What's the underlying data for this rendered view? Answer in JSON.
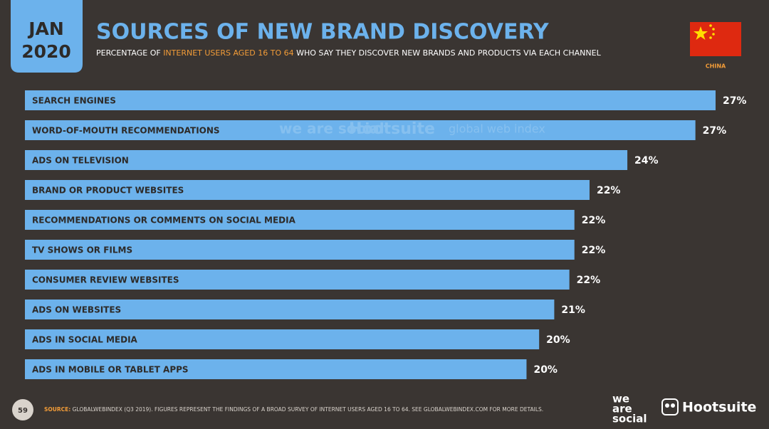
{
  "chart_data": {
    "type": "hbar",
    "badge": {
      "month": "JAN",
      "year": "2020"
    },
    "title": "SOURCES OF NEW BRAND DISCOVERY",
    "subtitle_parts": [
      "PERCENTAGE OF ",
      "INTERNET USERS AGED 16 TO 64",
      " WHO SAY THEY DISCOVER NEW BRANDS AND PRODUCTS VIA EACH CHANNEL"
    ],
    "country": "CHINA",
    "categories": [
      "SEARCH ENGINES",
      "WORD-OF-MOUTH RECOMMENDATIONS",
      "ADS ON TELEVISION",
      "BRAND OR PRODUCT WEBSITES",
      "RECOMMENDATIONS OR COMMENTS ON SOCIAL MEDIA",
      "TV SHOWS OR FILMS",
      "CONSUMER REVIEW WEBSITES",
      "ADS ON WEBSITES",
      "ADS IN SOCIAL MEDIA",
      "ADS IN MOBILE OR TABLET APPS"
    ],
    "values": [
      27.4,
      26.6,
      23.9,
      22.4,
      21.8,
      21.8,
      21.6,
      21.0,
      20.4,
      19.9
    ],
    "value_labels": [
      "27%",
      "27%",
      "24%",
      "22%",
      "22%",
      "22%",
      "22%",
      "21%",
      "20%",
      "20%"
    ],
    "color": "#6cb2ec",
    "xlim": [
      0,
      30
    ],
    "watermarks": [
      "we are social",
      "Hootsuite",
      "global web index"
    ],
    "footer": {
      "page": "59",
      "source_label": "SOURCE:",
      "source_text": " GLOBALWEBINDEX (Q3 2019). FIGURES REPRESENT THE FINDINGS OF A BROAD SURVEY OF INTERNET USERS AGED 16 TO 64. SEE GLOBALWEBINDEX.COM FOR MORE DETAILS.",
      "logo_1": [
        "we",
        "are",
        "social"
      ],
      "logo_2": "Hootsuite"
    }
  }
}
